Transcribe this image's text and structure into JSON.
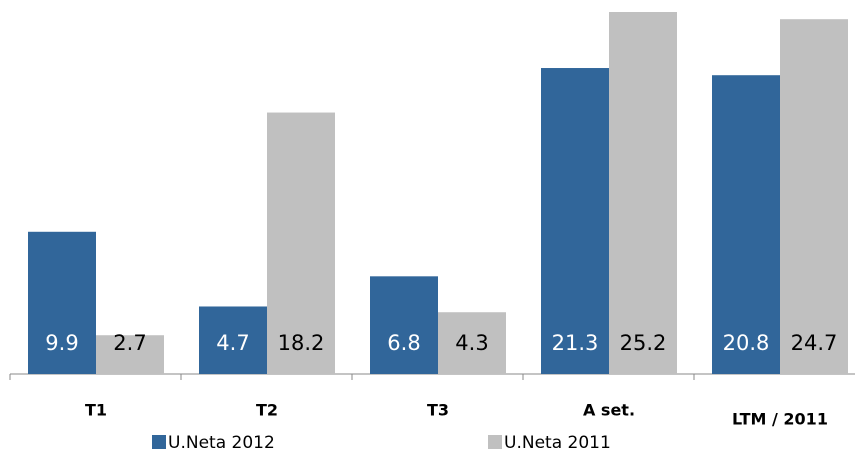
{
  "chart_data": {
    "type": "bar",
    "categories": [
      "T1",
      "T2",
      "T3",
      "A set.",
      "LTM / 2011"
    ],
    "series": [
      {
        "name": "U.Neta 2012",
        "color": "#31669a",
        "values": [
          9.9,
          4.7,
          6.8,
          21.3,
          20.8
        ]
      },
      {
        "name": "U.Neta 2011",
        "color": "#c0c0c0",
        "values": [
          2.7,
          18.2,
          4.3,
          25.2,
          24.7
        ]
      }
    ]
  }
}
